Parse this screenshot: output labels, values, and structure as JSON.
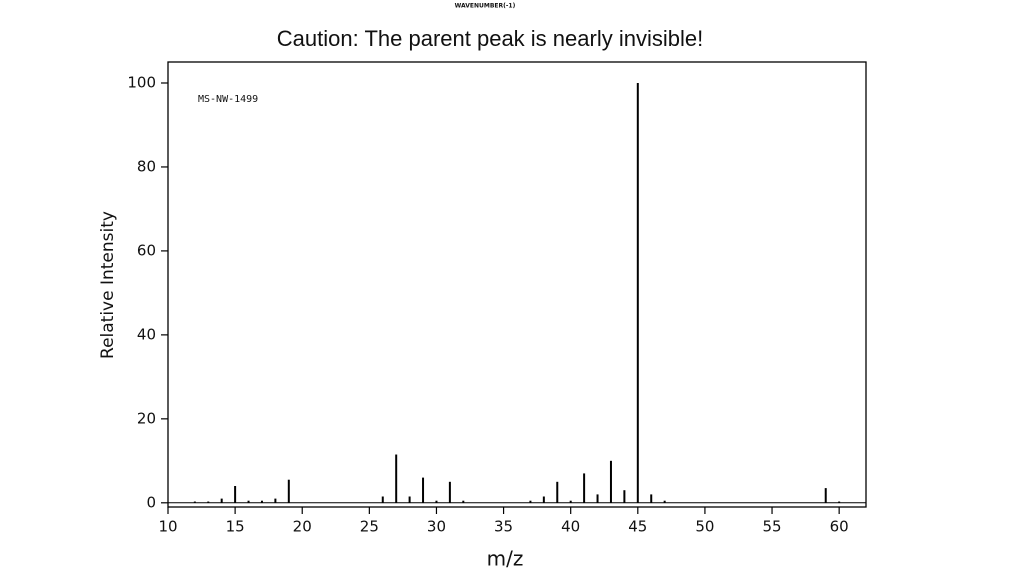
{
  "chart_data": {
    "type": "stem",
    "header": "WAVENUMBER(-1)",
    "title": "Caution:  The parent peak is nearly invisible!",
    "annotation": "MS-NW-1499",
    "xlabel": "m/z",
    "ylabel": "Relative Intensity",
    "x": [
      12,
      13,
      14,
      15,
      16,
      17,
      18,
      19,
      26,
      27,
      28,
      29,
      30,
      31,
      32,
      37,
      38,
      39,
      40,
      41,
      42,
      43,
      44,
      45,
      46,
      47,
      59,
      60
    ],
    "values": [
      0.3,
      0.3,
      1,
      4,
      0.5,
      0.5,
      1,
      5.5,
      1.5,
      11.5,
      1.5,
      6,
      0.5,
      5,
      0.5,
      0.5,
      1.5,
      5,
      0.5,
      7,
      2,
      10,
      3,
      100,
      2,
      0.5,
      3.5,
      0.3
    ],
    "color": "#000000",
    "xlim": [
      10,
      62
    ],
    "xticks": [
      10,
      15,
      20,
      25,
      30,
      35,
      40,
      45,
      50,
      55,
      60
    ],
    "ylim": [
      -1,
      105
    ],
    "yticks": [
      0,
      20,
      40,
      60,
      80,
      100
    ]
  }
}
